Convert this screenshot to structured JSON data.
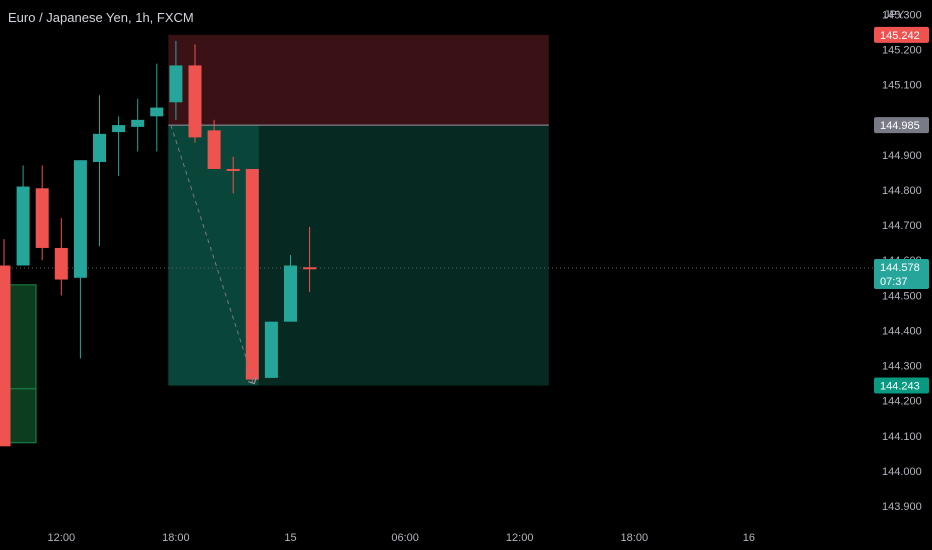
{
  "header": {
    "symbol_title": "Euro / Japanese Yen, 1h, FXCM",
    "currency": "JPY"
  },
  "colors": {
    "background": "#000000",
    "up": "#26a69a",
    "down": "#ef5350",
    "axis_text": "#b2b5be",
    "stop_zone": "#3a1216",
    "target_zone": "#062a22",
    "entry_badge": "#787b86",
    "target_badge": "#089981"
  },
  "chart_data": {
    "type": "candlestick",
    "price_axis": {
      "ylim": [
        143.86,
        145.33
      ],
      "ticks": [
        "145.300",
        "145.200",
        "145.100",
        "144.900",
        "144.800",
        "144.700",
        "144.600",
        "144.500",
        "144.400",
        "144.300",
        "144.200",
        "144.100",
        "144.000",
        "143.900"
      ]
    },
    "time_axis": {
      "ticks": [
        {
          "label": "12:00",
          "index": 3
        },
        {
          "label": "18:00",
          "index": 9
        },
        {
          "label": "15",
          "index": 15
        },
        {
          "label": "06:00",
          "index": 21
        },
        {
          "label": "12:00",
          "index": 27
        },
        {
          "label": "18:00",
          "index": 33
        },
        {
          "label": "16",
          "index": 39
        }
      ]
    },
    "candles": [
      {
        "open": 144.585,
        "high": 144.66,
        "low": 144.07,
        "close": 144.07
      },
      {
        "open": 144.585,
        "high": 144.87,
        "low": 144.585,
        "close": 144.81
      },
      {
        "open": 144.805,
        "high": 144.87,
        "low": 144.6,
        "close": 144.635
      },
      {
        "open": 144.635,
        "high": 144.72,
        "low": 144.5,
        "close": 144.545
      },
      {
        "open": 144.55,
        "high": 144.885,
        "low": 144.32,
        "close": 144.885
      },
      {
        "open": 144.88,
        "high": 145.07,
        "low": 144.64,
        "close": 144.96
      },
      {
        "open": 144.965,
        "high": 145.01,
        "low": 144.84,
        "close": 144.985
      },
      {
        "open": 144.98,
        "high": 145.06,
        "low": 144.91,
        "close": 145.0
      },
      {
        "open": 145.01,
        "high": 145.16,
        "low": 144.91,
        "close": 145.035
      },
      {
        "open": 145.05,
        "high": 145.225,
        "low": 145.0,
        "close": 145.155
      },
      {
        "open": 145.155,
        "high": 145.215,
        "low": 144.935,
        "close": 144.95
      },
      {
        "open": 144.97,
        "high": 145.0,
        "low": 144.87,
        "close": 144.86
      },
      {
        "open": 144.86,
        "high": 144.895,
        "low": 144.79,
        "close": 144.855
      },
      {
        "open": 144.86,
        "high": 144.86,
        "low": 144.25,
        "close": 144.26
      },
      {
        "open": 144.265,
        "high": 144.425,
        "low": 144.265,
        "close": 144.425
      },
      {
        "open": 144.425,
        "high": 144.615,
        "low": 144.425,
        "close": 144.585
      },
      {
        "open": 144.58,
        "high": 144.695,
        "low": 144.51,
        "close": 144.578
      }
    ],
    "volume_profile": [
      {
        "from": 144.08,
        "to": 144.53,
        "value": 36
      }
    ],
    "position": {
      "side": "short",
      "start_index": 9,
      "end_index": 28,
      "entry": 144.985,
      "stop": 145.242,
      "target": 144.243
    },
    "trend_path": {
      "from": {
        "index": 9,
        "price": 144.985
      },
      "to": {
        "index": 13,
        "price": 144.243
      }
    },
    "current_price_line": 144.578,
    "labels": {
      "stop": {
        "text": "145.242",
        "price": 145.242
      },
      "entry": {
        "text": "144.985",
        "price": 144.985
      },
      "current": {
        "text": "144.578",
        "price": 144.578,
        "countdown": "07:37"
      },
      "target": {
        "text": "144.243",
        "price": 144.243
      }
    }
  }
}
